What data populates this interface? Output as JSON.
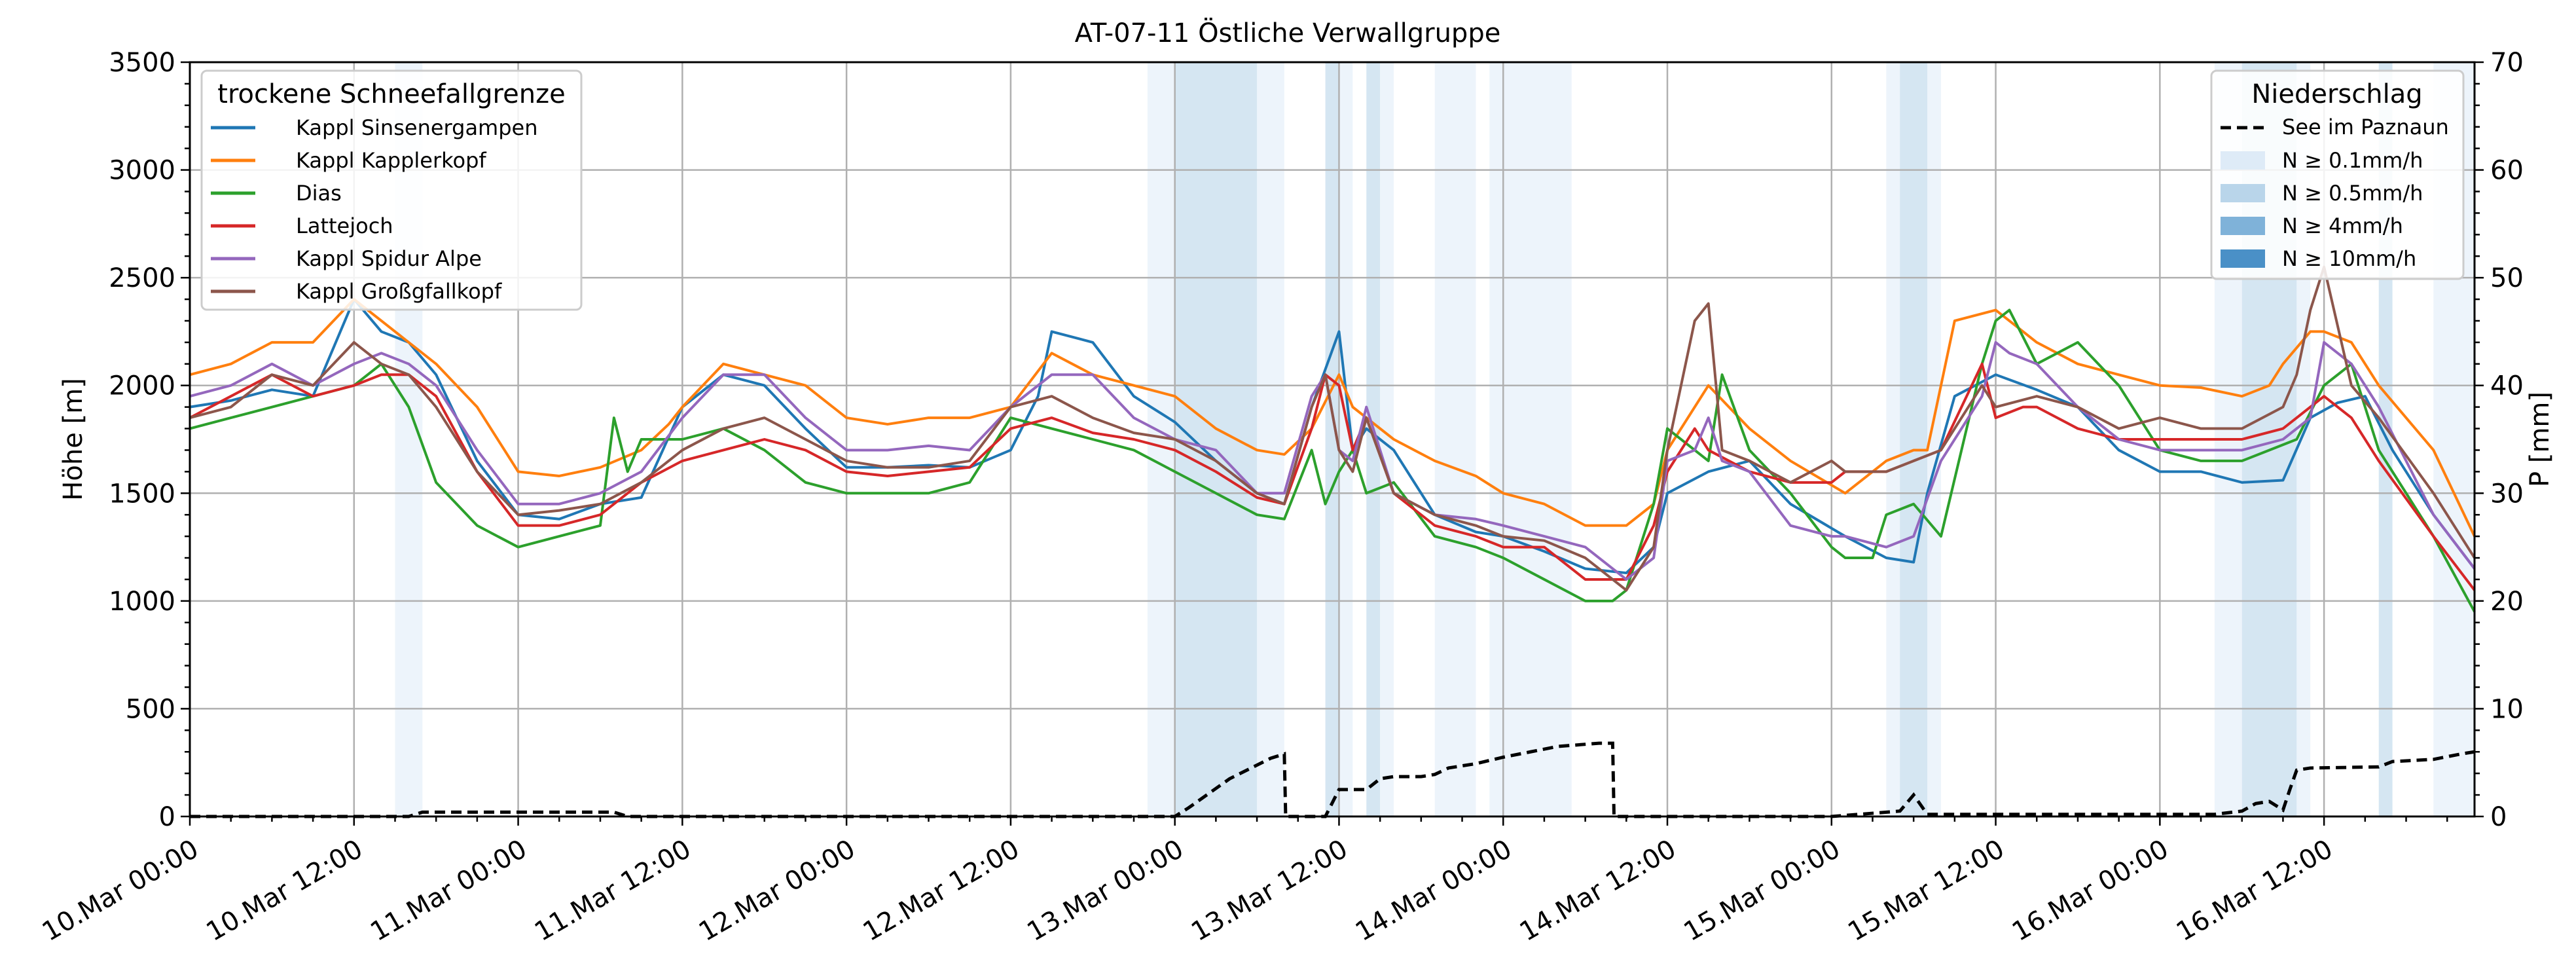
{
  "chart_data": {
    "type": "line",
    "title": "AT-07-11 Östliche Verwallgruppe",
    "ylabel": "Höhe [m]",
    "y2label": "P [mm]",
    "x_unit": "hours since 10.Mar 00:00",
    "xlim": [
      0,
      167
    ],
    "ylim": [
      0,
      3500
    ],
    "y2lim": [
      0,
      70
    ],
    "xticks": [
      0,
      12,
      24,
      36,
      48,
      60,
      72,
      84,
      96,
      108,
      120,
      132,
      144,
      156
    ],
    "xtick_labels": [
      "10.Mar 00:00",
      "10.Mar 12:00",
      "11.Mar 00:00",
      "11.Mar 12:00",
      "12.Mar 00:00",
      "12.Mar 12:00",
      "13.Mar 00:00",
      "13.Mar 12:00",
      "14.Mar 00:00",
      "14.Mar 12:00",
      "15.Mar 00:00",
      "15.Mar 12:00",
      "16.Mar 00:00",
      "16.Mar 12:00"
    ],
    "yticks": [
      0,
      500,
      1000,
      1500,
      2000,
      2500,
      3000,
      3500
    ],
    "ytick_labels": [
      "0",
      "500",
      "1000",
      "1500",
      "2000",
      "2500",
      "3000",
      "3500"
    ],
    "y2ticks": [
      0,
      10,
      20,
      30,
      40,
      50,
      60,
      70
    ],
    "y2tick_labels": [
      "0",
      "10",
      "20",
      "30",
      "40",
      "50",
      "60",
      "70"
    ],
    "grid": true,
    "legend_left": {
      "title": "trockene Schneefallgrenze",
      "position": "top-left"
    },
    "legend_right": {
      "title": "Niederschlag",
      "position": "top-right",
      "line_label": "See im Paznaun",
      "band_labels": [
        "N ≥ 0.1mm/h",
        "N ≥ 0.5mm/h",
        "N ≥ 4mm/h",
        "N ≥ 10mm/h"
      ],
      "band_colors": [
        "#deebf7",
        "#b9d5ea",
        "#7fb2d9",
        "#4a90c7"
      ]
    },
    "precip_bands": [
      {
        "start": 15,
        "end": 17,
        "level": 0
      },
      {
        "start": 70,
        "end": 72,
        "level": 0
      },
      {
        "start": 72,
        "end": 78,
        "level": 1
      },
      {
        "start": 78,
        "end": 80,
        "level": 0
      },
      {
        "start": 83,
        "end": 84,
        "level": 1
      },
      {
        "start": 84,
        "end": 85,
        "level": 0
      },
      {
        "start": 86,
        "end": 87,
        "level": 1
      },
      {
        "start": 87,
        "end": 88,
        "level": 0
      },
      {
        "start": 91,
        "end": 94,
        "level": 0
      },
      {
        "start": 95,
        "end": 101,
        "level": 0
      },
      {
        "start": 124,
        "end": 125,
        "level": 0
      },
      {
        "start": 125,
        "end": 127,
        "level": 1
      },
      {
        "start": 127,
        "end": 128,
        "level": 0
      },
      {
        "start": 148,
        "end": 150,
        "level": 0
      },
      {
        "start": 150,
        "end": 154,
        "level": 1
      },
      {
        "start": 154,
        "end": 155,
        "level": 0
      },
      {
        "start": 160,
        "end": 161,
        "level": 1
      },
      {
        "start": 164,
        "end": 167,
        "level": 0
      }
    ],
    "precip_line": {
      "name": "See im Paznaun",
      "color": "#000000",
      "x": [
        0,
        16,
        17,
        31,
        32,
        72,
        73,
        76,
        79,
        80,
        80.1,
        83,
        84,
        86,
        87,
        88,
        90,
        91,
        92,
        94,
        96,
        98,
        100,
        103,
        104,
        104.1,
        120,
        125,
        126,
        127,
        128,
        135,
        148,
        150,
        151,
        152,
        153,
        153.5,
        154,
        155,
        160,
        161,
        164,
        166,
        167
      ],
      "y": [
        0,
        0,
        0.4,
        0.4,
        0,
        0,
        0.8,
        3.5,
        5.4,
        5.8,
        0,
        0,
        2.5,
        2.5,
        3.5,
        3.7,
        3.7,
        3.9,
        4.5,
        4.9,
        5.5,
        6,
        6.5,
        6.8,
        6.8,
        0,
        0,
        0.5,
        2,
        0.2,
        0.2,
        0.2,
        0.2,
        0.5,
        1.2,
        1.4,
        0.6,
        2.5,
        4.3,
        4.5,
        4.6,
        5.1,
        5.3,
        5.8,
        6
      ]
    },
    "series": [
      {
        "name": "Kappl Sinsenergampen",
        "color": "#1f77b4",
        "x": [
          0,
          3,
          6,
          9,
          12,
          14,
          16,
          18,
          21,
          24,
          27,
          30,
          33,
          36,
          39,
          42,
          45,
          48,
          51,
          54,
          57,
          60,
          62,
          63,
          66,
          69,
          72,
          75,
          78,
          80,
          82,
          84,
          85,
          86,
          88,
          91,
          94,
          96,
          99,
          102,
          105,
          107,
          108,
          111,
          114,
          117,
          121,
          124,
          126,
          127,
          129,
          132,
          135,
          138,
          141,
          144,
          147,
          150,
          153,
          155,
          157,
          159,
          161,
          164,
          167
        ],
        "y": [
          1900,
          1930,
          1980,
          1950,
          2400,
          2250,
          2200,
          2050,
          1650,
          1400,
          1380,
          1450,
          1480,
          1900,
          2050,
          2000,
          1800,
          1620,
          1620,
          1630,
          1620,
          1700,
          1950,
          2250,
          2200,
          1950,
          1830,
          1650,
          1500,
          1450,
          1900,
          2250,
          1700,
          1800,
          1700,
          1400,
          1320,
          1300,
          1230,
          1150,
          1130,
          1250,
          1500,
          1600,
          1650,
          1450,
          1300,
          1200,
          1180,
          1500,
          1950,
          2050,
          1980,
          1900,
          1700,
          1600,
          1600,
          1550,
          1560,
          1850,
          1920,
          1950,
          1700,
          1400,
          1150
        ]
      },
      {
        "name": "Kappl Kapplerkopf",
        "color": "#ff7f0e",
        "x": [
          0,
          3,
          6,
          9,
          12,
          14,
          16,
          18,
          21,
          24,
          27,
          30,
          33,
          35,
          36,
          39,
          42,
          45,
          48,
          51,
          54,
          57,
          60,
          63,
          66,
          69,
          72,
          75,
          78,
          80,
          82,
          84,
          85,
          86,
          88,
          91,
          94,
          96,
          99,
          102,
          105,
          107,
          108,
          111,
          114,
          117,
          121,
          124,
          126,
          127,
          129,
          132,
          135,
          138,
          141,
          144,
          147,
          150,
          152,
          153,
          155,
          156,
          158,
          160,
          164,
          167
        ],
        "y": [
          2050,
          2100,
          2200,
          2200,
          2400,
          2300,
          2200,
          2100,
          1900,
          1600,
          1580,
          1620,
          1700,
          1820,
          1900,
          2100,
          2050,
          2000,
          1850,
          1820,
          1850,
          1850,
          1900,
          2150,
          2050,
          2000,
          1950,
          1800,
          1700,
          1680,
          1800,
          2050,
          1900,
          1850,
          1750,
          1650,
          1580,
          1500,
          1450,
          1350,
          1350,
          1450,
          1700,
          2000,
          1800,
          1650,
          1500,
          1650,
          1700,
          1700,
          2300,
          2350,
          2200,
          2100,
          2050,
          2000,
          1990,
          1950,
          2000,
          2100,
          2250,
          2250,
          2200,
          2000,
          1700,
          1300
        ]
      },
      {
        "name": "Dias",
        "color": "#2ca02c",
        "x": [
          0,
          3,
          6,
          9,
          12,
          14,
          16,
          18,
          21,
          24,
          27,
          30,
          31,
          32,
          33,
          36,
          39,
          42,
          45,
          48,
          51,
          54,
          57,
          60,
          63,
          66,
          69,
          72,
          75,
          78,
          80,
          82,
          83,
          84,
          85,
          86,
          88,
          91,
          94,
          96,
          99,
          102,
          104,
          105,
          107,
          108,
          111,
          112,
          114,
          117,
          120,
          121,
          123,
          124,
          126,
          128,
          131,
          132,
          133,
          135,
          138,
          141,
          144,
          147,
          150,
          152,
          154,
          156,
          158,
          160,
          164,
          167
        ],
        "y": [
          1800,
          1850,
          1900,
          1950,
          2000,
          2100,
          1900,
          1550,
          1350,
          1250,
          1300,
          1350,
          1850,
          1600,
          1750,
          1750,
          1800,
          1700,
          1550,
          1500,
          1500,
          1500,
          1550,
          1850,
          1800,
          1750,
          1700,
          1600,
          1500,
          1400,
          1380,
          1700,
          1450,
          1600,
          1700,
          1500,
          1550,
          1300,
          1250,
          1200,
          1100,
          1000,
          1000,
          1050,
          1450,
          1800,
          1650,
          2050,
          1700,
          1500,
          1250,
          1200,
          1200,
          1400,
          1450,
          1300,
          2100,
          2300,
          2350,
          2100,
          2200,
          2000,
          1700,
          1650,
          1650,
          1700,
          1750,
          2000,
          2100,
          1700,
          1300,
          950
        ]
      },
      {
        "name": "Lattejoch",
        "color": "#d62728",
        "x": [
          0,
          3,
          6,
          9,
          12,
          14,
          16,
          18,
          21,
          24,
          27,
          30,
          33,
          36,
          39,
          42,
          45,
          48,
          51,
          54,
          57,
          60,
          63,
          66,
          69,
          72,
          75,
          78,
          80,
          82,
          83,
          84,
          85,
          86,
          88,
          91,
          94,
          96,
          99,
          102,
          105,
          107,
          108,
          110,
          111,
          114,
          117,
          120,
          121,
          124,
          126,
          128,
          131,
          132,
          134,
          135,
          138,
          141,
          144,
          147,
          150,
          153,
          155,
          156,
          158,
          160,
          164,
          167
        ],
        "y": [
          1850,
          1950,
          2050,
          1950,
          2000,
          2050,
          2050,
          1950,
          1600,
          1350,
          1350,
          1400,
          1550,
          1650,
          1700,
          1750,
          1700,
          1600,
          1580,
          1600,
          1620,
          1800,
          1850,
          1780,
          1750,
          1700,
          1600,
          1480,
          1450,
          1800,
          2050,
          2000,
          1700,
          1850,
          1500,
          1350,
          1300,
          1250,
          1250,
          1100,
          1100,
          1350,
          1600,
          1800,
          1700,
          1600,
          1550,
          1550,
          1600,
          1600,
          1650,
          1700,
          2100,
          1850,
          1900,
          1900,
          1800,
          1750,
          1750,
          1750,
          1750,
          1800,
          1900,
          1950,
          1850,
          1650,
          1300,
          1050
        ]
      },
      {
        "name": "Kappl Spidur Alpe",
        "color": "#9467bd",
        "x": [
          0,
          3,
          6,
          9,
          12,
          14,
          16,
          18,
          21,
          24,
          27,
          30,
          33,
          36,
          39,
          42,
          45,
          48,
          51,
          54,
          57,
          60,
          63,
          66,
          69,
          72,
          75,
          78,
          80,
          82,
          83,
          84,
          85,
          86,
          88,
          91,
          94,
          96,
          99,
          102,
          105,
          107,
          108,
          110,
          111,
          112,
          114,
          117,
          120,
          121,
          124,
          126,
          128,
          131,
          132,
          133,
          135,
          138,
          141,
          144,
          147,
          150,
          153,
          155,
          156,
          158,
          160,
          164,
          167
        ],
        "y": [
          1950,
          2000,
          2100,
          2000,
          2100,
          2150,
          2100,
          2000,
          1700,
          1450,
          1450,
          1500,
          1600,
          1850,
          2050,
          2050,
          1850,
          1700,
          1700,
          1720,
          1700,
          1900,
          2050,
          2050,
          1850,
          1750,
          1700,
          1500,
          1500,
          1950,
          2050,
          1700,
          1650,
          1900,
          1500,
          1400,
          1380,
          1350,
          1300,
          1250,
          1100,
          1200,
          1650,
          1700,
          1850,
          1650,
          1600,
          1350,
          1300,
          1300,
          1250,
          1300,
          1650,
          1950,
          2200,
          2150,
          2100,
          1900,
          1750,
          1700,
          1700,
          1700,
          1750,
          1850,
          2200,
          2100,
          1900,
          1400,
          1150
        ]
      },
      {
        "name": "Kappl Großgfallkopf",
        "color": "#8c564b",
        "x": [
          0,
          3,
          6,
          9,
          12,
          14,
          16,
          18,
          21,
          24,
          27,
          30,
          33,
          36,
          39,
          42,
          45,
          48,
          51,
          54,
          57,
          60,
          63,
          66,
          69,
          72,
          75,
          78,
          80,
          82,
          83,
          84,
          85,
          86,
          88,
          91,
          94,
          96,
          99,
          102,
          104,
          105,
          107,
          108,
          110,
          111,
          112,
          114,
          117,
          120,
          121,
          124,
          126,
          128,
          131,
          132,
          135,
          138,
          141,
          144,
          147,
          150,
          153,
          154,
          155,
          156,
          158,
          160,
          164,
          167
        ],
        "y": [
          1850,
          1900,
          2050,
          2000,
          2200,
          2100,
          2050,
          1900,
          1600,
          1400,
          1420,
          1450,
          1550,
          1700,
          1800,
          1850,
          1750,
          1650,
          1620,
          1620,
          1650,
          1900,
          1950,
          1850,
          1780,
          1750,
          1650,
          1500,
          1450,
          1900,
          2050,
          1700,
          1600,
          1850,
          1500,
          1400,
          1350,
          1300,
          1280,
          1200,
          1100,
          1050,
          1250,
          1700,
          2300,
          2380,
          1700,
          1650,
          1550,
          1650,
          1600,
          1600,
          1650,
          1700,
          2000,
          1900,
          1950,
          1900,
          1800,
          1850,
          1800,
          1800,
          1900,
          2050,
          2350,
          2550,
          2000,
          1850,
          1500,
          1200
        ]
      }
    ]
  }
}
